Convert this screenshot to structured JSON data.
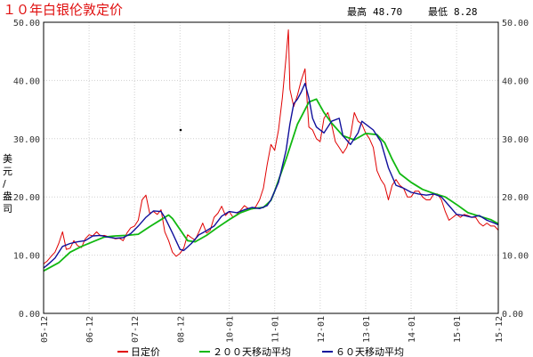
{
  "header": {
    "title": "１０年白银伦敦定价",
    "max_label": "最高",
    "max_value": "48.70",
    "min_label": "最低",
    "min_value": "8.28"
  },
  "colors": {
    "daily": "#e00000",
    "ma200": "#11b811",
    "ma60": "#10109c",
    "grid": "#d0d0d0",
    "axis": "#000000"
  },
  "chart_data": {
    "type": "line",
    "ylabel": "美元/盎司",
    "ylim": [
      0,
      50
    ],
    "yticks": [
      "0.00",
      "10.00",
      "20.00",
      "30.00",
      "40.00",
      "50.00"
    ],
    "xlim": [
      2005.917,
      2015.917
    ],
    "x_ticks": [
      {
        "label": "05-12",
        "x": 2005.917
      },
      {
        "label": "06-12",
        "x": 2006.917
      },
      {
        "label": "07-12",
        "x": 2007.917
      },
      {
        "label": "08-12",
        "x": 2008.917
      },
      {
        "label": "10-01",
        "x": 2010.0
      },
      {
        "label": "11-01",
        "x": 2011.0
      },
      {
        "label": "12-01",
        "x": 2012.0
      },
      {
        "label": "13-01",
        "x": 2013.0
      },
      {
        "label": "14-01",
        "x": 2014.0
      },
      {
        "label": "15-01",
        "x": 2015.0
      },
      {
        "label": "15-12",
        "x": 2015.917
      }
    ],
    "grid": true,
    "legend_position": "bottom",
    "series": [
      {
        "name": "日定价",
        "color": "#e00000",
        "x": [
          2005.917,
          2006.0,
          2006.083,
          2006.167,
          2006.25,
          2006.333,
          2006.417,
          2006.5,
          2006.583,
          2006.667,
          2006.75,
          2006.833,
          2006.917,
          2007.0,
          2007.083,
          2007.167,
          2007.25,
          2007.333,
          2007.417,
          2007.5,
          2007.583,
          2007.667,
          2007.75,
          2007.833,
          2007.917,
          2008.0,
          2008.083,
          2008.167,
          2008.25,
          2008.333,
          2008.417,
          2008.5,
          2008.583,
          2008.667,
          2008.75,
          2008.833,
          2008.917,
          2009.0,
          2009.083,
          2009.167,
          2009.25,
          2009.333,
          2009.417,
          2009.5,
          2009.583,
          2009.667,
          2009.75,
          2009.833,
          2009.917,
          2010.0,
          2010.083,
          2010.167,
          2010.25,
          2010.333,
          2010.417,
          2010.5,
          2010.583,
          2010.667,
          2010.75,
          2010.833,
          2010.917,
          2011.0,
          2011.083,
          2011.167,
          2011.25,
          2011.3,
          2011.333,
          2011.417,
          2011.5,
          2011.583,
          2011.667,
          2011.75,
          2011.833,
          2011.917,
          2012.0,
          2012.083,
          2012.167,
          2012.25,
          2012.333,
          2012.417,
          2012.5,
          2012.583,
          2012.667,
          2012.75,
          2012.833,
          2012.917,
          2013.0,
          2013.083,
          2013.167,
          2013.25,
          2013.333,
          2013.417,
          2013.5,
          2013.583,
          2013.667,
          2013.75,
          2013.833,
          2013.917,
          2014.0,
          2014.083,
          2014.167,
          2014.25,
          2014.333,
          2014.417,
          2014.5,
          2014.583,
          2014.667,
          2014.75,
          2014.833,
          2014.917,
          2015.0,
          2015.083,
          2015.167,
          2015.25,
          2015.333,
          2015.417,
          2015.5,
          2015.583,
          2015.667,
          2015.75,
          2015.833,
          2015.917
        ],
        "values": [
          8.5,
          9.0,
          9.8,
          10.5,
          12.0,
          14.0,
          11.0,
          11.2,
          12.5,
          11.6,
          11.3,
          12.8,
          13.5,
          13.3,
          14.0,
          13.3,
          13.4,
          13.2,
          13.0,
          12.8,
          12.9,
          12.5,
          13.8,
          14.7,
          15.0,
          16.0,
          19.5,
          20.3,
          17.2,
          17.5,
          17.0,
          17.8,
          14.0,
          12.5,
          10.5,
          9.8,
          10.3,
          11.2,
          13.5,
          13.0,
          12.6,
          14.0,
          15.5,
          13.8,
          14.3,
          16.5,
          17.2,
          18.4,
          16.8,
          17.5,
          16.5,
          17.0,
          17.7,
          18.5,
          18.0,
          17.9,
          18.3,
          19.5,
          21.5,
          25.5,
          29.0,
          28.0,
          31.5,
          37.0,
          44.0,
          48.7,
          38.5,
          35.5,
          37.5,
          40.0,
          42.0,
          32.0,
          31.5,
          30.0,
          29.5,
          33.5,
          34.5,
          32.5,
          29.5,
          28.5,
          27.5,
          28.5,
          30.5,
          34.5,
          33.0,
          32.5,
          31.0,
          30.0,
          28.5,
          24.5,
          23.0,
          22.0,
          19.5,
          22.0,
          23.0,
          22.0,
          21.5,
          20.0,
          20.0,
          21.0,
          21.0,
          20.0,
          19.5,
          19.5,
          20.5,
          20.5,
          19.5,
          17.5,
          16.0,
          16.5,
          17.0,
          16.5,
          17.0,
          16.8,
          16.5,
          16.5,
          15.5,
          15.0,
          15.5,
          15.0,
          15.0,
          14.3
        ]
      },
      {
        "name": "２００天移动平均",
        "color": "#11b811",
        "x": [
          2005.917,
          2006.25,
          2006.5,
          2006.75,
          2007.0,
          2007.25,
          2007.5,
          2007.75,
          2008.0,
          2008.25,
          2008.5,
          2008.667,
          2008.75,
          2008.917,
          2009.083,
          2009.25,
          2009.5,
          2009.75,
          2010.0,
          2010.25,
          2010.5,
          2010.75,
          2010.917,
          2011.0,
          2011.25,
          2011.5,
          2011.667,
          2011.75,
          2011.917,
          2012.083,
          2012.25,
          2012.5,
          2012.75,
          2013.0,
          2013.25,
          2013.417,
          2013.583,
          2013.75,
          2014.0,
          2014.25,
          2014.5,
          2014.75,
          2015.0,
          2015.25,
          2015.5,
          2015.75,
          2015.917
        ],
        "values": [
          7.3,
          8.7,
          10.5,
          11.5,
          12.3,
          13.1,
          13.3,
          13.4,
          13.6,
          14.9,
          16.1,
          16.9,
          16.3,
          14.4,
          12.5,
          12.3,
          13.4,
          14.8,
          16.1,
          17.3,
          18.0,
          18.2,
          19.4,
          21.0,
          26.5,
          32.5,
          35.0,
          36.3,
          36.8,
          34.5,
          32.7,
          30.5,
          29.8,
          30.9,
          30.7,
          29.3,
          26.5,
          24.0,
          22.5,
          21.3,
          20.6,
          20.0,
          18.7,
          17.3,
          16.7,
          16.1,
          15.4
        ]
      },
      {
        "name": "６０天移动平均",
        "color": "#10109c",
        "x": [
          2005.917,
          2006.0,
          2006.167,
          2006.333,
          2006.5,
          2006.667,
          2006.833,
          2007.0,
          2007.167,
          2007.333,
          2007.5,
          2007.667,
          2007.833,
          2008.0,
          2008.167,
          2008.333,
          2008.5,
          2008.583,
          2008.75,
          2008.917,
          2009.0,
          2009.167,
          2009.333,
          2009.5,
          2009.667,
          2009.833,
          2010.0,
          2010.167,
          2010.333,
          2010.5,
          2010.667,
          2010.833,
          2010.917,
          2011.083,
          2011.25,
          2011.333,
          2011.417,
          2011.5,
          2011.583,
          2011.667,
          2011.75,
          2011.833,
          2011.917,
          2012.083,
          2012.25,
          2012.417,
          2012.5,
          2012.667,
          2012.833,
          2012.917,
          2013.0,
          2013.167,
          2013.25,
          2013.333,
          2013.5,
          2013.667,
          2013.833,
          2014.0,
          2014.167,
          2014.333,
          2014.5,
          2014.667,
          2014.833,
          2015.0,
          2015.167,
          2015.333,
          2015.5,
          2015.667,
          2015.833,
          2015.917
        ],
        "values": [
          7.8,
          8.3,
          9.5,
          11.5,
          12.0,
          12.3,
          12.5,
          13.3,
          13.4,
          13.1,
          12.9,
          13.0,
          13.7,
          15.0,
          16.5,
          17.6,
          17.5,
          16.5,
          13.8,
          11.0,
          10.8,
          12.0,
          13.5,
          14.2,
          15.0,
          16.7,
          17.5,
          17.3,
          17.8,
          18.2,
          18.0,
          18.5,
          19.5,
          22.5,
          28.0,
          32.5,
          36.0,
          36.8,
          38.0,
          39.5,
          37.0,
          33.5,
          32.0,
          31.0,
          33.0,
          33.5,
          30.5,
          29.0,
          31.0,
          33.0,
          32.5,
          31.5,
          30.5,
          29.5,
          25.0,
          22.0,
          21.5,
          20.8,
          20.5,
          20.3,
          20.5,
          20.0,
          18.5,
          17.0,
          16.8,
          16.5,
          16.8,
          16.0,
          15.5,
          15.2
        ]
      }
    ]
  }
}
